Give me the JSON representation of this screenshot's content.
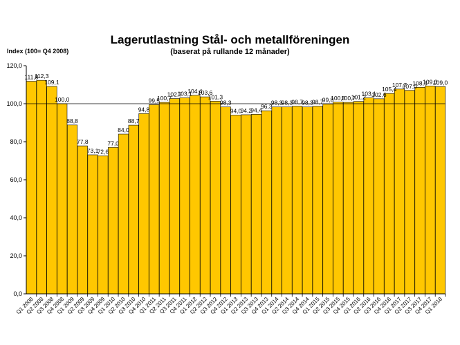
{
  "chart_data": {
    "type": "bar",
    "title": "Lagerutlastning Stål- och metallföreningen",
    "subtitle": "(baserat på rullande 12 månader)",
    "ylabel": "Index (100= Q4 2008)",
    "xlabel": "",
    "ylim": [
      0,
      120
    ],
    "yticks": [
      "0,0",
      "20,0",
      "40,0",
      "60,0",
      "80,0",
      "100,0",
      "120,0"
    ],
    "grid": false,
    "legend": "none",
    "bar_color": "#FFC700",
    "categories": [
      "Q1 2008",
      "Q2 2008",
      "Q3 2008",
      "Q4 2008",
      "Q1 2009",
      "Q2 2009",
      "Q3 2009",
      "Q4 2009",
      "Q1 2010",
      "Q2 2010",
      "Q3 2010",
      "Q4 2010",
      "Q1 2011",
      "Q2 2011",
      "Q3 2011",
      "Q4 2011",
      "Q1 2012",
      "Q2 2012",
      "Q3 2012",
      "Q4 2012",
      "Q1 2013",
      "Q2 2013",
      "Q3 2013",
      "Q4 2013",
      "Q1 2014",
      "Q2 2014",
      "Q3 2014",
      "Q4 2014",
      "Q1 2015",
      "Q2 2015",
      "Q3 2015",
      "Q4 2015",
      "Q1 2016",
      "Q2 2016",
      "Q3 2016",
      "Q4 2016",
      "Q1 2017",
      "Q2 2017",
      "Q3 2017",
      "Q4 2017",
      "Q1 2018"
    ],
    "values": [
      111.8,
      112.3,
      109.1,
      100.0,
      88.8,
      77.8,
      73.1,
      72.6,
      77.0,
      84.0,
      88.7,
      94.8,
      99.5,
      100.7,
      102.7,
      103.1,
      104.4,
      103.6,
      101.3,
      98.3,
      94.0,
      94.2,
      94.4,
      96.3,
      98.3,
      98.3,
      98.7,
      98.3,
      98.7,
      99.8,
      100.8,
      100.7,
      101.2,
      103.1,
      102.6,
      105.4,
      107.7,
      107.0,
      108.6,
      109.3,
      109.0
    ],
    "value_labels": [
      "111,8",
      "112,3",
      "109,1",
      "100,0",
      "88,8",
      "77,8",
      "73,1",
      "72,6",
      "77,0",
      "84,0",
      "88,7",
      "94,8",
      "99,5",
      "100,7",
      "102,7",
      "103,1",
      "104,4",
      "103,6",
      "101,3",
      "98,3",
      "94,0",
      "94,2",
      "94,4",
      "96,3",
      "98,3",
      "98,3",
      "98,7",
      "98,3",
      "98,7",
      "99,8",
      "100,8",
      "100,7",
      "101,2",
      "103,1",
      "102,6",
      "105,4",
      "107,7",
      "107,0",
      "108,6",
      "109,3",
      "109,0"
    ],
    "reference_line": 100.0
  }
}
